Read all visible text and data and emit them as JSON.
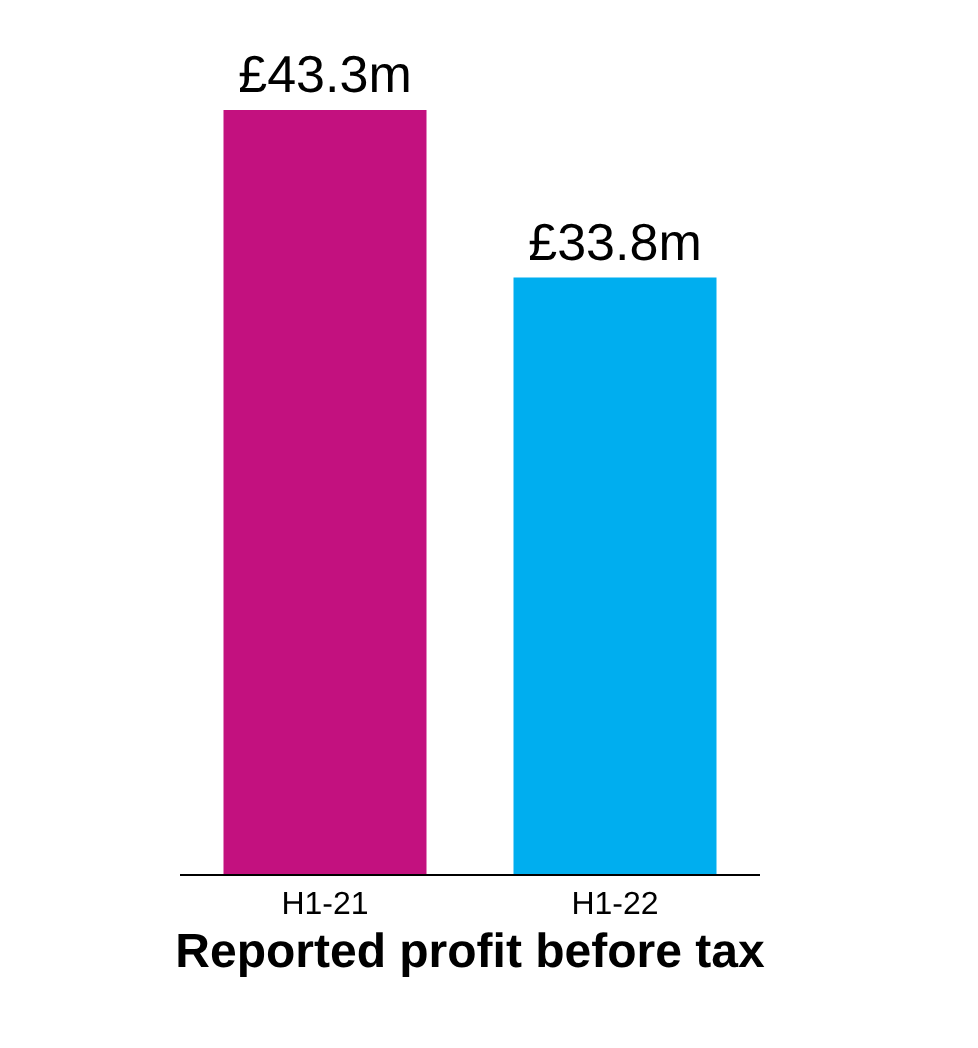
{
  "chart_data": {
    "type": "bar",
    "xlabel": "Reported profit before tax",
    "categories": [
      "H1-21",
      "H1-22"
    ],
    "values": [
      43.3,
      33.8
    ],
    "colors": [
      "#c3117f",
      "#00aeef"
    ],
    "value_labels": [
      "£43.3m",
      "£33.8m"
    ]
  }
}
